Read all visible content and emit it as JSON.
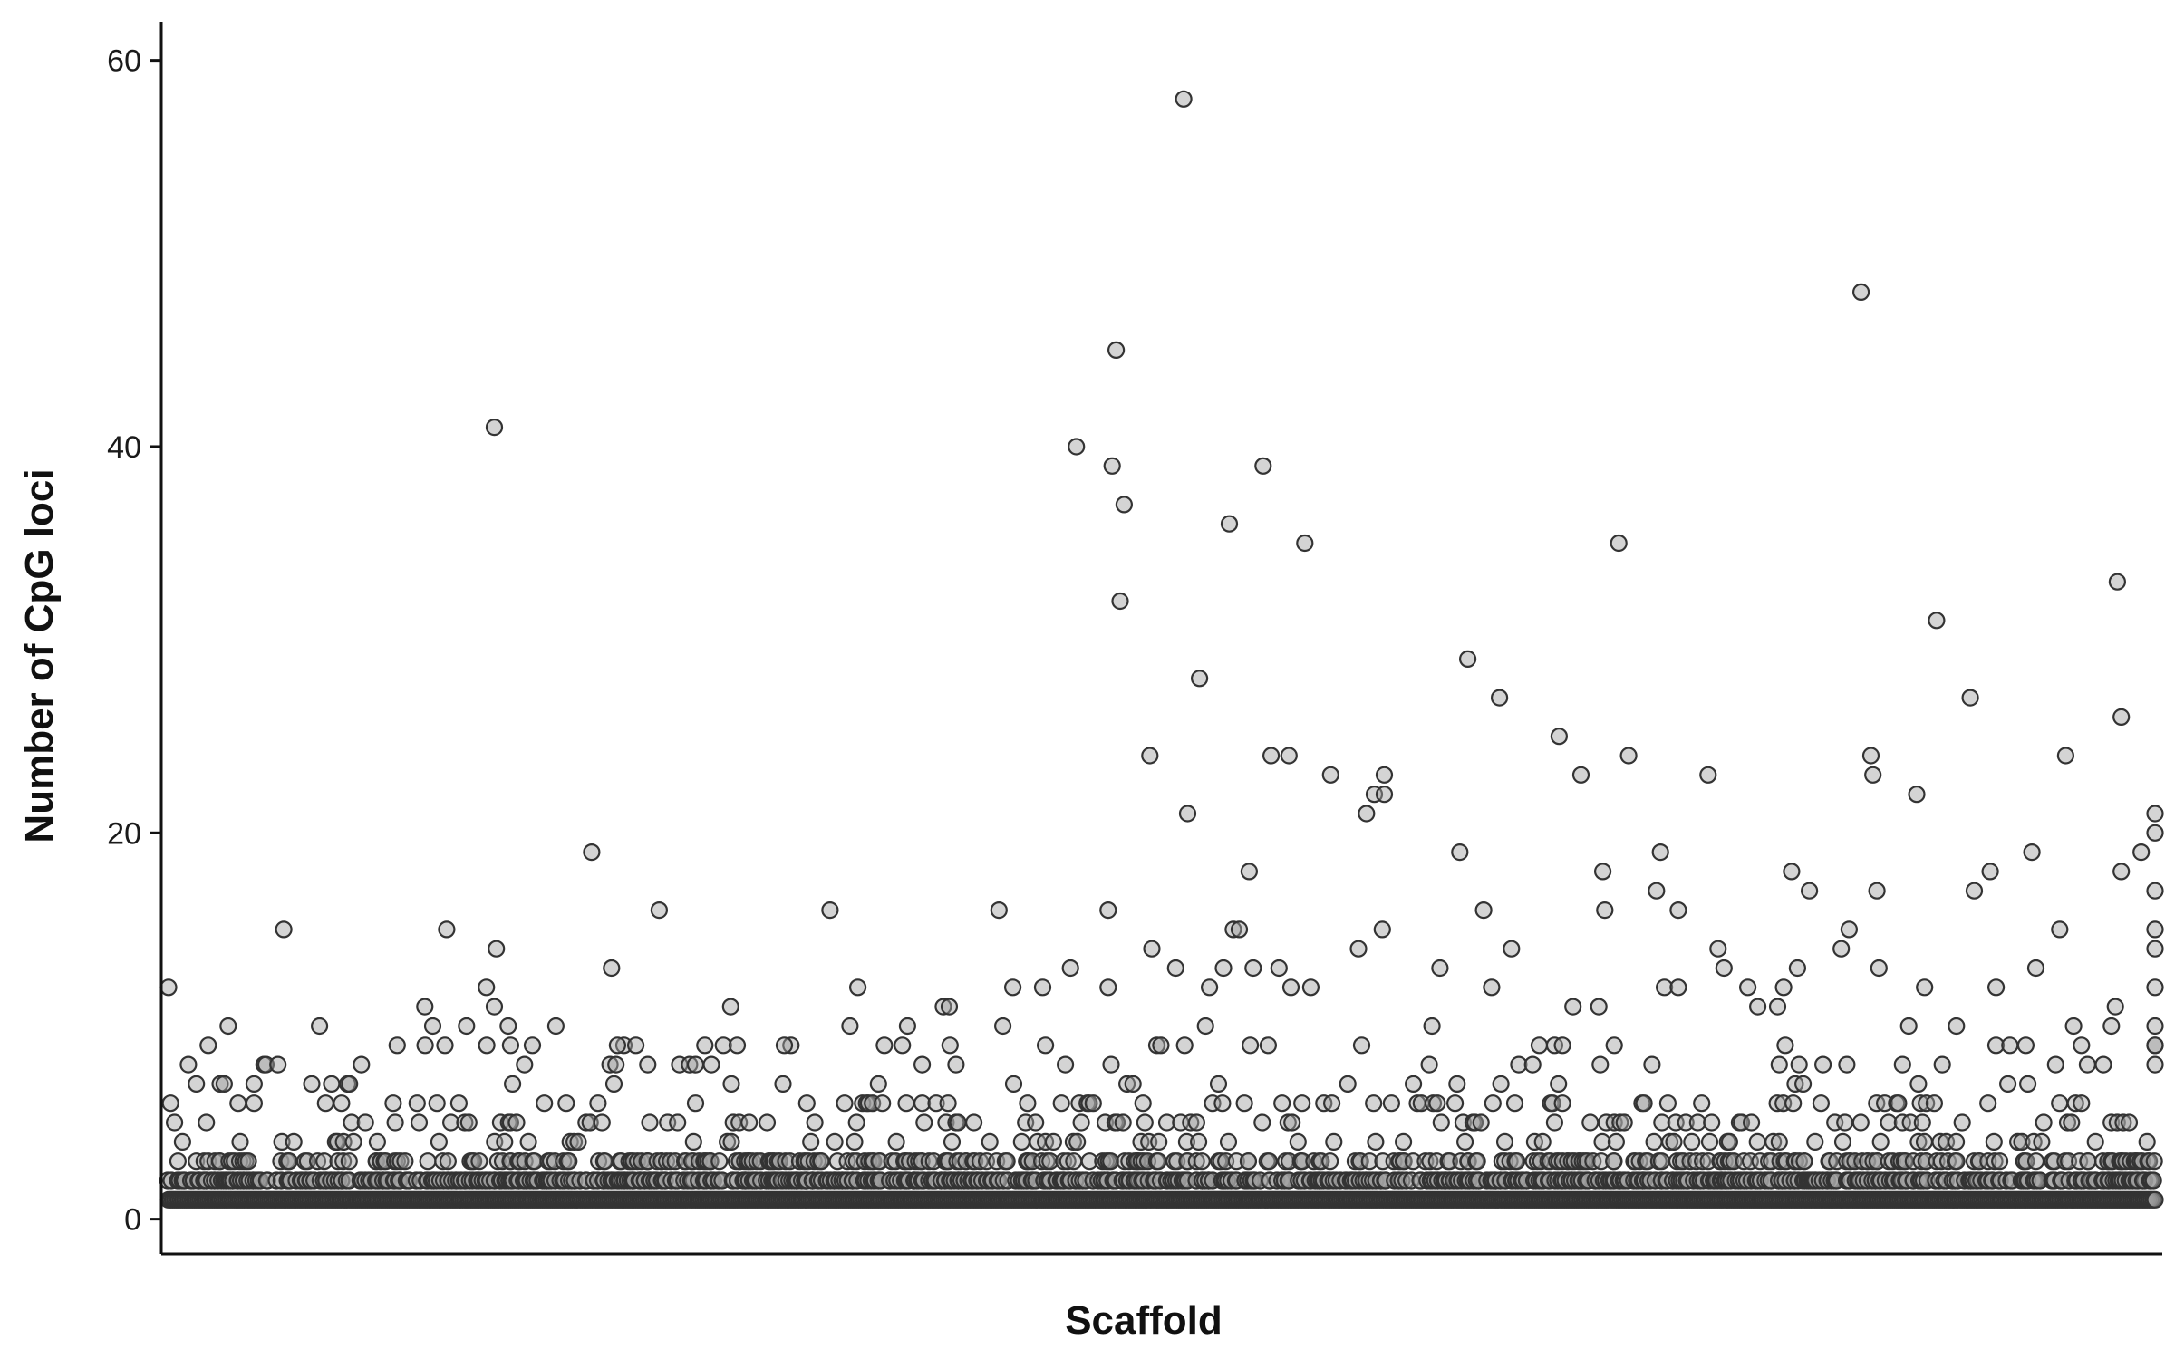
{
  "chart_data": {
    "type": "scatter",
    "title": "",
    "xlabel": "Scaffold",
    "ylabel": "Number of CpG loci",
    "ylim": [
      -1.8,
      62
    ],
    "yticks": [
      "0",
      "20",
      "40",
      "60"
    ],
    "grid": false,
    "legend": "none",
    "baseline_points": {
      "description_levels": [
        1,
        2,
        3
      ],
      "count": 1000
    },
    "series": [
      {
        "values": [
          {
            "x": 0.0,
            "y": 12
          },
          {
            "x": 0.01,
            "y": 8
          },
          {
            "x": 0.02,
            "y": 9
          },
          {
            "x": 0.03,
            "y": 10
          },
          {
            "x": 0.058,
            "y": 15
          },
          {
            "x": 0.076,
            "y": 10
          },
          {
            "x": 0.129,
            "y": 11
          },
          {
            "x": 0.133,
            "y": 10
          },
          {
            "x": 0.14,
            "y": 15
          },
          {
            "x": 0.15,
            "y": 10
          },
          {
            "x": 0.16,
            "y": 12
          },
          {
            "x": 0.165,
            "y": 14
          },
          {
            "x": 0.171,
            "y": 10
          },
          {
            "x": 0.164,
            "y": 41
          },
          {
            "x": 0.164,
            "y": 11
          },
          {
            "x": 0.195,
            "y": 10
          },
          {
            "x": 0.213,
            "y": 19
          },
          {
            "x": 0.223,
            "y": 13
          },
          {
            "x": 0.226,
            "y": 9
          },
          {
            "x": 0.247,
            "y": 16
          },
          {
            "x": 0.27,
            "y": 9
          },
          {
            "x": 0.283,
            "y": 11
          },
          {
            "x": 0.31,
            "y": 9
          },
          {
            "x": 0.333,
            "y": 16
          },
          {
            "x": 0.343,
            "y": 10
          },
          {
            "x": 0.347,
            "y": 12
          },
          {
            "x": 0.372,
            "y": 10
          },
          {
            "x": 0.39,
            "y": 11
          },
          {
            "x": 0.393,
            "y": 11
          },
          {
            "x": 0.418,
            "y": 16
          },
          {
            "x": 0.42,
            "y": 10
          },
          {
            "x": 0.425,
            "y": 12
          },
          {
            "x": 0.44,
            "y": 12
          },
          {
            "x": 0.454,
            "y": 13
          },
          {
            "x": 0.457,
            "y": 40
          },
          {
            "x": 0.473,
            "y": 16
          },
          {
            "x": 0.473,
            "y": 12
          },
          {
            "x": 0.475,
            "y": 39
          },
          {
            "x": 0.477,
            "y": 45
          },
          {
            "x": 0.479,
            "y": 32
          },
          {
            "x": 0.481,
            "y": 37
          },
          {
            "x": 0.494,
            "y": 24
          },
          {
            "x": 0.495,
            "y": 14
          },
          {
            "x": 0.507,
            "y": 13
          },
          {
            "x": 0.511,
            "y": 58
          },
          {
            "x": 0.513,
            "y": 21
          },
          {
            "x": 0.519,
            "y": 28
          },
          {
            "x": 0.522,
            "y": 10
          },
          {
            "x": 0.524,
            "y": 12
          },
          {
            "x": 0.531,
            "y": 13
          },
          {
            "x": 0.534,
            "y": 36
          },
          {
            "x": 0.536,
            "y": 15
          },
          {
            "x": 0.539,
            "y": 15
          },
          {
            "x": 0.544,
            "y": 18
          },
          {
            "x": 0.546,
            "y": 13
          },
          {
            "x": 0.551,
            "y": 39
          },
          {
            "x": 0.555,
            "y": 24
          },
          {
            "x": 0.559,
            "y": 13
          },
          {
            "x": 0.564,
            "y": 24
          },
          {
            "x": 0.565,
            "y": 12
          },
          {
            "x": 0.572,
            "y": 35
          },
          {
            "x": 0.575,
            "y": 12
          },
          {
            "x": 0.585,
            "y": 23
          },
          {
            "x": 0.599,
            "y": 14
          },
          {
            "x": 0.603,
            "y": 21
          },
          {
            "x": 0.607,
            "y": 22
          },
          {
            "x": 0.611,
            "y": 15
          },
          {
            "x": 0.612,
            "y": 22
          },
          {
            "x": 0.612,
            "y": 23
          },
          {
            "x": 0.64,
            "y": 13
          },
          {
            "x": 0.636,
            "y": 10
          },
          {
            "x": 0.65,
            "y": 19
          },
          {
            "x": 0.654,
            "y": 29
          },
          {
            "x": 0.662,
            "y": 16
          },
          {
            "x": 0.666,
            "y": 12
          },
          {
            "x": 0.67,
            "y": 27
          },
          {
            "x": 0.676,
            "y": 14
          },
          {
            "x": 0.69,
            "y": 9
          },
          {
            "x": 0.7,
            "y": 25
          },
          {
            "x": 0.707,
            "y": 11
          },
          {
            "x": 0.711,
            "y": 23
          },
          {
            "x": 0.72,
            "y": 11
          },
          {
            "x": 0.722,
            "y": 18
          },
          {
            "x": 0.723,
            "y": 16
          },
          {
            "x": 0.73,
            "y": 35
          },
          {
            "x": 0.735,
            "y": 24
          },
          {
            "x": 0.749,
            "y": 17
          },
          {
            "x": 0.751,
            "y": 19
          },
          {
            "x": 0.753,
            "y": 12
          },
          {
            "x": 0.76,
            "y": 16
          },
          {
            "x": 0.76,
            "y": 12
          },
          {
            "x": 0.775,
            "y": 23
          },
          {
            "x": 0.78,
            "y": 14
          },
          {
            "x": 0.783,
            "y": 13
          },
          {
            "x": 0.795,
            "y": 12
          },
          {
            "x": 0.8,
            "y": 11
          },
          {
            "x": 0.81,
            "y": 11
          },
          {
            "x": 0.813,
            "y": 12
          },
          {
            "x": 0.817,
            "y": 18
          },
          {
            "x": 0.82,
            "y": 13
          },
          {
            "x": 0.826,
            "y": 17
          },
          {
            "x": 0.842,
            "y": 14
          },
          {
            "x": 0.846,
            "y": 15
          },
          {
            "x": 0.852,
            "y": 48
          },
          {
            "x": 0.857,
            "y": 24
          },
          {
            "x": 0.858,
            "y": 23
          },
          {
            "x": 0.86,
            "y": 17
          },
          {
            "x": 0.861,
            "y": 13
          },
          {
            "x": 0.88,
            "y": 22
          },
          {
            "x": 0.876,
            "y": 10
          },
          {
            "x": 0.884,
            "y": 12
          },
          {
            "x": 0.89,
            "y": 31
          },
          {
            "x": 0.9,
            "y": 10
          },
          {
            "x": 0.907,
            "y": 27
          },
          {
            "x": 0.909,
            "y": 17
          },
          {
            "x": 0.917,
            "y": 18
          },
          {
            "x": 0.92,
            "y": 12
          },
          {
            "x": 0.938,
            "y": 19
          },
          {
            "x": 0.94,
            "y": 13
          },
          {
            "x": 0.952,
            "y": 15
          },
          {
            "x": 0.955,
            "y": 24
          },
          {
            "x": 0.959,
            "y": 10
          },
          {
            "x": 0.978,
            "y": 10
          },
          {
            "x": 0.981,
            "y": 33
          },
          {
            "x": 0.983,
            "y": 26
          },
          {
            "x": 0.983,
            "y": 18
          },
          {
            "x": 0.98,
            "y": 11
          },
          {
            "x": 0.993,
            "y": 19
          },
          {
            "x": 1.02,
            "y": 17
          },
          {
            "x": 1.013,
            "y": 9
          },
          {
            "x": 1.02,
            "y": 14
          },
          {
            "x": 1.036,
            "y": 15
          },
          {
            "x": 1.05,
            "y": 10
          },
          {
            "x": 1.072,
            "y": 20
          },
          {
            "x": 1.079,
            "y": 12
          },
          {
            "x": 1.082,
            "y": 9
          },
          {
            "x": 1.0,
            "y": 21
          }
        ]
      }
    ]
  }
}
